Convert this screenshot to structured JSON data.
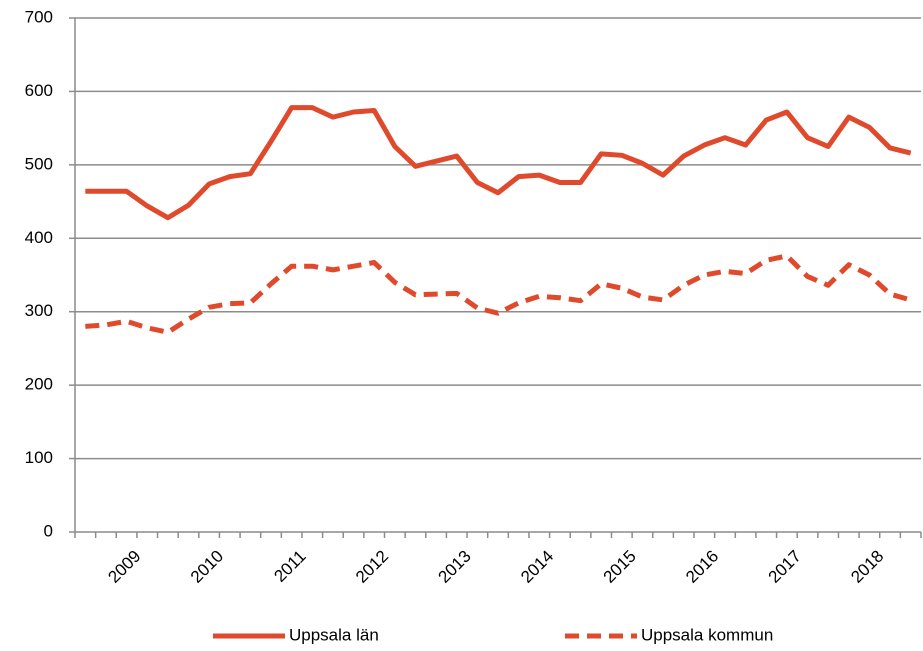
{
  "chart_data": {
    "type": "line",
    "categories": [
      null,
      null,
      "2009",
      null,
      null,
      null,
      "2010",
      null,
      null,
      null,
      "2011",
      null,
      null,
      null,
      "2012",
      null,
      null,
      null,
      "2013",
      null,
      null,
      null,
      "2014",
      null,
      null,
      null,
      "2015",
      null,
      null,
      null,
      "2016",
      null,
      null,
      null,
      "2017",
      null,
      null,
      null,
      "2018",
      null,
      null
    ],
    "series": [
      {
        "name": "Uppsala län",
        "color": "#e04a2c",
        "dash": false,
        "values": [
          464,
          464,
          464,
          444,
          428,
          445,
          474,
          484,
          488,
          532,
          578,
          578,
          565,
          572,
          574,
          525,
          498,
          505,
          512,
          476,
          462,
          484,
          486,
          476,
          476,
          515,
          513,
          502,
          486,
          512,
          527,
          537,
          527,
          561,
          572,
          537,
          525,
          565,
          551,
          523,
          516
        ]
      },
      {
        "name": "Uppsala kommun",
        "color": "#e04a2c",
        "dash": true,
        "values": [
          280,
          282,
          287,
          278,
          272,
          290,
          306,
          311,
          312,
          338,
          362,
          362,
          357,
          362,
          367,
          340,
          323,
          324,
          325,
          305,
          298,
          312,
          321,
          319,
          315,
          338,
          332,
          320,
          316,
          336,
          350,
          355,
          352,
          370,
          376,
          348,
          336,
          364,
          350,
          324,
          316
        ]
      }
    ],
    "ylim": [
      0,
      700
    ],
    "yticks": [
      0,
      100,
      200,
      300,
      400,
      500,
      600,
      700
    ],
    "grid": true,
    "legend": "bottom"
  }
}
